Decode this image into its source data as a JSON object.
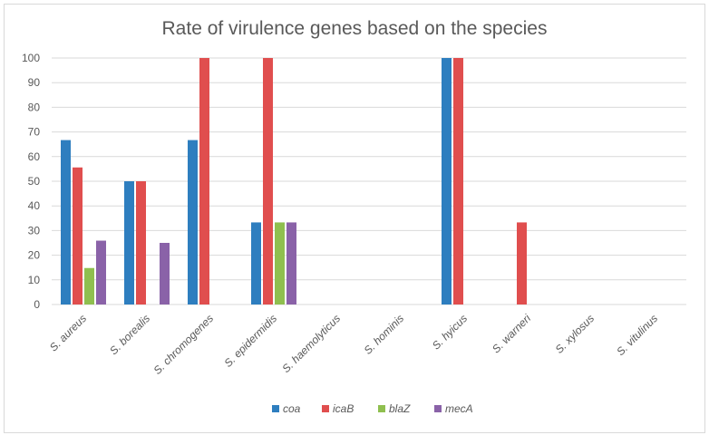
{
  "chart_data": {
    "type": "bar",
    "title": "Rate of virulence genes based on the species",
    "xlabel": "",
    "ylabel": "",
    "ylim": [
      0,
      100
    ],
    "yticks": [
      "0",
      "10",
      "20",
      "30",
      "40",
      "50",
      "60",
      "70",
      "80",
      "90",
      "100"
    ],
    "grid": true,
    "legend_position": "bottom",
    "categories": [
      "S. aureus",
      "S. borealis",
      "S. chromogenes",
      "S. epidermidis",
      "S. haemolyticus",
      "S. hominis",
      "S. hyicus",
      "S. warneri",
      "S. xylosus",
      "S. vitulinus"
    ],
    "series": [
      {
        "name": "coa",
        "color": "#2e7ebf",
        "values": [
          66.7,
          50,
          66.7,
          33.3,
          0,
          0,
          100,
          0,
          0,
          0
        ]
      },
      {
        "name": "icaB",
        "color": "#e04e4e",
        "values": [
          55.6,
          50,
          100,
          100,
          0,
          0,
          100,
          33.3,
          0,
          0
        ]
      },
      {
        "name": "blaZ",
        "color": "#8fbf4f",
        "values": [
          14.8,
          0,
          0,
          33.3,
          0,
          0,
          0,
          0,
          0,
          0
        ]
      },
      {
        "name": "mecA",
        "color": "#8a62a8",
        "values": [
          25.9,
          25,
          0,
          33.3,
          0,
          0,
          0,
          0,
          0,
          0
        ]
      }
    ]
  }
}
